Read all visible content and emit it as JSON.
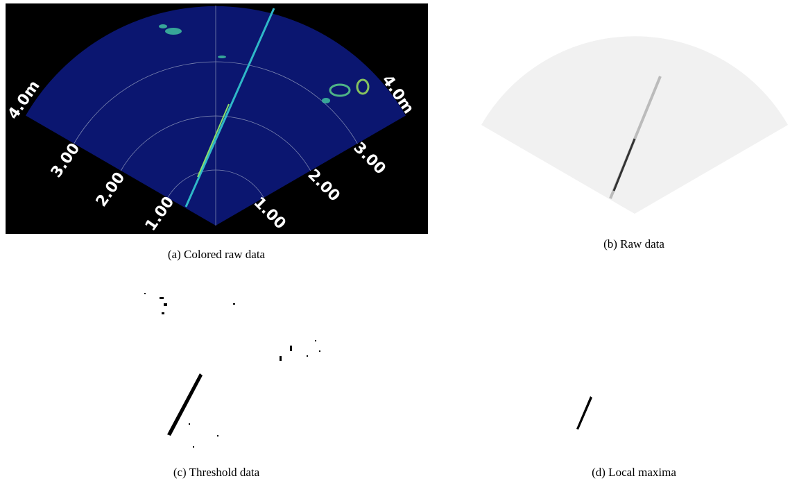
{
  "figures": [
    {
      "caption": "(a) Colored raw data",
      "range_labels": {
        "left": [
          "4.0m",
          "3.00",
          "2.00",
          "1.00"
        ],
        "right": [
          "4.0m",
          "3.00",
          "2.00",
          "1.00"
        ]
      }
    },
    {
      "caption": "(b) Raw data"
    },
    {
      "caption": "(c) Threshold data"
    },
    {
      "caption": "(d) Local maxima"
    }
  ]
}
